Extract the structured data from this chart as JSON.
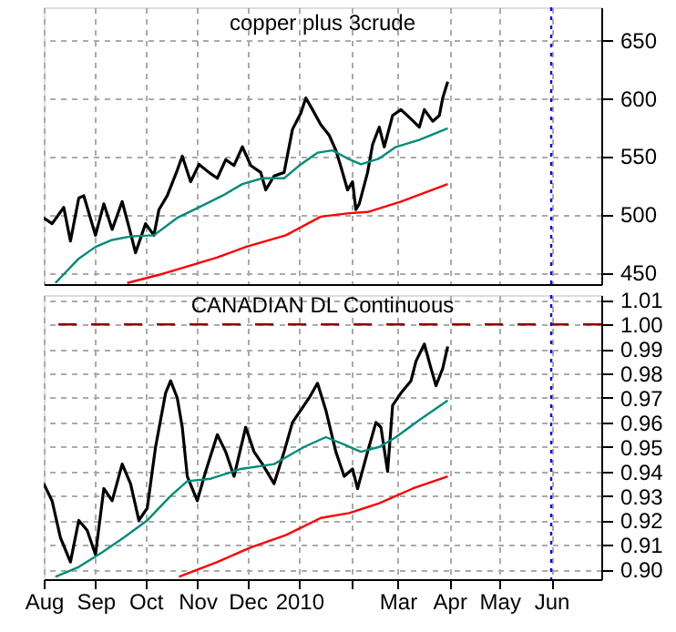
{
  "chart_data": [
    {
      "type": "line",
      "title": "copper plus 3crude",
      "xlim": [
        "2009-08-01",
        "2010-07-01"
      ],
      "xticks": [
        {
          "value": "2009-08-01",
          "label": null
        },
        {
          "value": "2009-09-01",
          "label": null
        },
        {
          "value": "2009-10-01",
          "label": null
        },
        {
          "value": "2009-11-01",
          "label": null
        },
        {
          "value": "2009-12-01",
          "label": null
        },
        {
          "value": "2010-01-01",
          "label": null
        },
        {
          "value": "2010-02-01",
          "label": null
        },
        {
          "value": "2010-03-01",
          "label": null
        },
        {
          "value": "2010-04-01",
          "label": null
        },
        {
          "value": "2010-05-01",
          "label": null
        },
        {
          "value": "2010-06-01",
          "label": null
        }
      ],
      "ylim": [
        440,
        678
      ],
      "yticks": [
        450,
        500,
        550,
        600,
        650
      ],
      "grid": true,
      "tick_labels": "y",
      "series": [
        {
          "color": "#000000",
          "x": [
            "2009-08-01",
            "2009-08-06",
            "2009-08-13",
            "2009-08-17",
            "2009-08-22",
            "2009-08-25",
            "2009-09-01",
            "2009-09-06",
            "2009-09-11",
            "2009-09-17",
            "2009-09-22",
            "2009-09-25",
            "2009-10-01",
            "2009-10-06",
            "2009-10-09",
            "2009-10-14",
            "2009-10-20",
            "2009-10-23",
            "2009-10-28",
            "2009-11-02",
            "2009-11-08",
            "2009-11-13",
            "2009-11-18",
            "2009-11-23",
            "2009-11-28",
            "2009-12-03",
            "2009-12-09",
            "2009-12-12",
            "2009-12-17",
            "2009-12-23",
            "2009-12-28",
            "2010-01-02",
            "2010-01-05",
            "2010-01-09",
            "2010-01-14",
            "2010-01-19",
            "2010-01-23",
            "2010-01-26",
            "2010-01-30",
            "2010-02-02",
            "2010-02-04",
            "2010-02-06",
            "2010-02-11",
            "2010-02-14",
            "2010-02-18",
            "2010-02-21",
            "2010-02-26",
            "2010-03-03",
            "2010-03-09",
            "2010-03-14",
            "2010-03-17",
            "2010-03-22",
            "2010-03-26",
            "2010-03-28",
            "2010-03-31"
          ],
          "values": [
            497,
            492,
            506,
            477,
            514,
            516,
            482,
            509,
            487,
            511,
            484,
            467,
            492,
            482,
            504,
            516,
            538,
            550,
            528,
            543,
            536,
            531,
            547,
            542,
            558,
            542,
            536,
            521,
            533,
            536,
            573,
            587,
            600,
            590,
            577,
            568,
            555,
            541,
            521,
            528,
            504,
            509,
            536,
            560,
            575,
            558,
            585,
            590,
            582,
            575,
            590,
            580,
            585,
            600,
            614
          ]
        },
        {
          "color": "#008c7a",
          "x": [
            "2009-08-08",
            "2009-08-22",
            "2009-09-01",
            "2009-09-11",
            "2009-09-22",
            "2009-10-06",
            "2009-10-20",
            "2009-11-02",
            "2009-11-16",
            "2009-11-28",
            "2009-12-10",
            "2009-12-23",
            "2010-01-02",
            "2010-01-12",
            "2010-01-21",
            "2010-01-30",
            "2010-02-07",
            "2010-02-18",
            "2010-02-28",
            "2010-03-14",
            "2010-03-31"
          ],
          "values": [
            441,
            462,
            472,
            478,
            481,
            482,
            497,
            506,
            516,
            526,
            531,
            531,
            543,
            553,
            555,
            548,
            543,
            548,
            558,
            564,
            574
          ]
        },
        {
          "color": "#ff0000",
          "x": [
            "2009-09-20",
            "2009-10-09",
            "2009-10-30",
            "2009-11-13",
            "2009-11-30",
            "2009-12-24",
            "2010-01-14",
            "2010-01-31",
            "2010-02-11",
            "2010-03-03",
            "2010-03-31"
          ],
          "values": [
            441,
            448,
            457,
            463,
            472,
            482,
            498,
            501,
            502,
            511,
            526
          ]
        }
      ],
      "ref_lines": [
        {
          "axis": "x",
          "value": "2010-06-01",
          "color": "#0000ff",
          "line_style": "dotted"
        }
      ]
    },
    {
      "type": "line",
      "title": "CANADIAN DL Continuous",
      "xlim": [
        "2009-08-01",
        "2010-07-01"
      ],
      "xticks": [
        {
          "value": "2009-08-01",
          "label": "Aug"
        },
        {
          "value": "2009-09-01",
          "label": "Sep"
        },
        {
          "value": "2009-10-01",
          "label": "Oct"
        },
        {
          "value": "2009-11-01",
          "label": "Nov"
        },
        {
          "value": "2009-12-01",
          "label": "Dec"
        },
        {
          "value": "2010-01-01",
          "label": "2010"
        },
        {
          "value": "2010-02-01",
          "label": null
        },
        {
          "value": "2010-03-01",
          "label": "Mar"
        },
        {
          "value": "2010-04-01",
          "label": "Apr"
        },
        {
          "value": "2010-05-01",
          "label": "May"
        },
        {
          "value": "2010-06-01",
          "label": "Jun"
        }
      ],
      "ylim": [
        0.896,
        1.012
      ],
      "yticks": [
        {
          "value": 0.9,
          "label": "0.90"
        },
        {
          "value": 0.91,
          "label": "0.91"
        },
        {
          "value": 0.92,
          "label": "0.92"
        },
        {
          "value": 0.93,
          "label": "0.93"
        },
        {
          "value": 0.94,
          "label": "0.94"
        },
        {
          "value": 0.95,
          "label": "0.95"
        },
        {
          "value": 0.96,
          "label": "0.96"
        },
        {
          "value": 0.97,
          "label": "0.97"
        },
        {
          "value": 0.98,
          "label": "0.98"
        },
        {
          "value": 0.99,
          "label": "0.99"
        },
        {
          "value": 1.0,
          "label": "1.00"
        },
        {
          "value": 1.01,
          "label": "1.01"
        }
      ],
      "grid": true,
      "series": [
        {
          "color": "#000000",
          "x": [
            "2009-08-01",
            "2009-08-06",
            "2009-08-11",
            "2009-08-17",
            "2009-08-22",
            "2009-08-27",
            "2009-09-01",
            "2009-09-06",
            "2009-09-11",
            "2009-09-17",
            "2009-09-22",
            "2009-09-27",
            "2009-10-02",
            "2009-10-07",
            "2009-10-13",
            "2009-10-16",
            "2009-10-20",
            "2009-10-23",
            "2009-10-26",
            "2009-11-01",
            "2009-11-06",
            "2009-11-13",
            "2009-11-18",
            "2009-11-23",
            "2009-11-30",
            "2009-12-05",
            "2009-12-10",
            "2009-12-17",
            "2009-12-23",
            "2009-12-28",
            "2010-01-02",
            "2010-01-07",
            "2010-01-12",
            "2010-01-17",
            "2010-01-23",
            "2010-01-28",
            "2010-02-02",
            "2010-02-05",
            "2010-02-11",
            "2010-02-16",
            "2010-02-19",
            "2010-02-23",
            "2010-02-26",
            "2010-03-03",
            "2010-03-09",
            "2010-03-12",
            "2010-03-17",
            "2010-03-21",
            "2010-03-24",
            "2010-03-28",
            "2010-03-31"
          ],
          "values": [
            0.935,
            0.928,
            0.913,
            0.903,
            0.92,
            0.916,
            0.906,
            0.933,
            0.928,
            0.943,
            0.935,
            0.92,
            0.925,
            0.95,
            0.972,
            0.977,
            0.97,
            0.958,
            0.938,
            0.928,
            0.94,
            0.955,
            0.948,
            0.938,
            0.958,
            0.948,
            0.943,
            0.935,
            0.948,
            0.96,
            0.965,
            0.97,
            0.976,
            0.965,
            0.948,
            0.938,
            0.941,
            0.933,
            0.948,
            0.96,
            0.958,
            0.94,
            0.967,
            0.972,
            0.977,
            0.985,
            0.992,
            0.982,
            0.975,
            0.982,
            0.991
          ]
        },
        {
          "color": "#008c7a",
          "x": [
            "2009-08-08",
            "2009-08-22",
            "2009-09-05",
            "2009-09-18",
            "2009-10-02",
            "2009-10-16",
            "2009-10-26",
            "2009-11-09",
            "2009-11-27",
            "2009-12-17",
            "2010-01-04",
            "2010-01-17",
            "2010-01-28",
            "2010-02-07",
            "2010-02-18",
            "2010-02-28",
            "2010-03-14",
            "2010-03-31"
          ],
          "values": [
            0.897,
            0.901,
            0.907,
            0.913,
            0.92,
            0.93,
            0.936,
            0.937,
            0.941,
            0.943,
            0.95,
            0.954,
            0.951,
            0.948,
            0.95,
            0.954,
            0.961,
            0.969
          ]
        },
        {
          "color": "#ff0000",
          "x": [
            "2009-10-21",
            "2009-11-13",
            "2009-12-03",
            "2009-12-24",
            "2010-01-14",
            "2010-01-31",
            "2010-02-18",
            "2010-03-10",
            "2010-03-31"
          ],
          "values": [
            0.897,
            0.903,
            0.909,
            0.914,
            0.921,
            0.923,
            0.927,
            0.933,
            0.938
          ]
        }
      ],
      "ref_lines": [
        {
          "axis": "y",
          "value": 1.0,
          "color": "#8b0000",
          "line_style": "dashed"
        },
        {
          "axis": "x",
          "value": "2010-06-01",
          "color": "#0000ff",
          "line_style": "dotted"
        }
      ]
    }
  ]
}
